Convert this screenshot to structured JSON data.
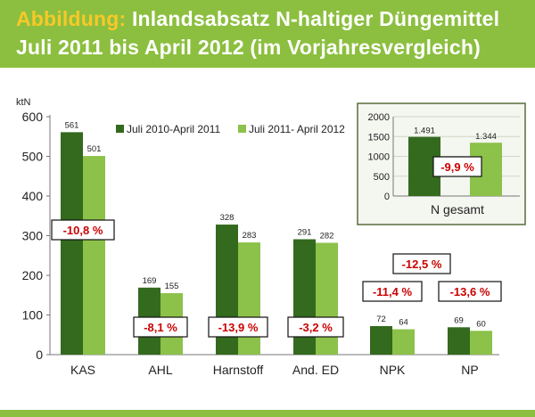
{
  "header": {
    "prefix": "Abbildung:",
    "title_line1": "Inlandsabsatz N-haltiger Düngemittel",
    "title_line2": "Juli 2011 bis April 2012 (im Vorjahresvergleich)"
  },
  "colors": {
    "header_bg": "#8cbf3f",
    "prefix": "#f7c928",
    "series_prev": "#336a1e",
    "series_curr": "#8cc14a",
    "label_box_text": "#cc0000"
  },
  "chart_data": [
    {
      "type": "bar",
      "ylabel": "ktN",
      "ylim": [
        0,
        600
      ],
      "yticks": [
        0,
        100,
        200,
        300,
        400,
        500,
        600
      ],
      "grid": false,
      "legend": "top-center",
      "categories": [
        "KAS",
        "AHL",
        "Harnstoff",
        "And. ED",
        "NPK",
        "NP"
      ],
      "series": [
        {
          "name": "Juli 2010-April 2011",
          "values": [
            561,
            169,
            328,
            291,
            72,
            69
          ],
          "labels": [
            "561",
            "169",
            "328",
            "291",
            "72",
            "69"
          ]
        },
        {
          "name": "Juli 2011- April 2012",
          "values": [
            501,
            155,
            283,
            282,
            64,
            60
          ],
          "labels": [
            "501",
            "155",
            "283",
            "282",
            "64",
            "60"
          ]
        }
      ],
      "changes": [
        "-10,8 %",
        "-8,1 %",
        "-13,9 %",
        "-3,2 %",
        "-11,4 %",
        "-13,6 %"
      ],
      "extra_change": "-12,5 %"
    },
    {
      "type": "bar",
      "title": "N gesamt",
      "ylim": [
        0,
        2000
      ],
      "yticks": [
        0,
        500,
        1000,
        1500,
        2000
      ],
      "grid": true,
      "values": [
        1491,
        1344
      ],
      "labels": [
        "1.491",
        "1.344"
      ],
      "change": "-9,9 %"
    }
  ]
}
